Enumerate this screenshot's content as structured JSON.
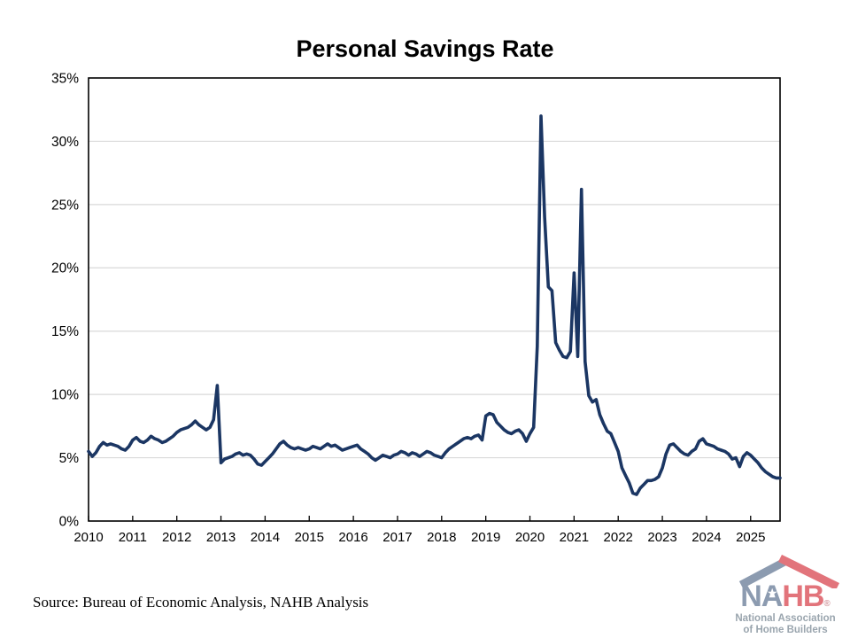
{
  "title": "Personal Savings Rate",
  "source_note": "Source: Bureau of Economic Analysis, NAHB Analysis",
  "logo": {
    "acronym_na": "NA",
    "acronym_hb": "HB",
    "registered_mark": "®",
    "star": "★",
    "subtitle_line1": "National Association",
    "subtitle_line2": "of Home Builders",
    "colors": {
      "blue_gray": "#8c9bb0",
      "red": "#e2747b",
      "gray_text": "#9aa5ae"
    }
  },
  "chart_data": {
    "type": "line",
    "title": "Personal Savings Rate",
    "frequency": "monthly",
    "x_start": "2010-01",
    "x_end": "2025-09",
    "xlabel": "",
    "ylabel": "",
    "ylim": [
      0,
      35
    ],
    "grid": "horizontal",
    "legend": "none",
    "colors": {
      "line": "#1b3663",
      "gridline": "#d9d9d9",
      "border": "#000000"
    },
    "x_tick_labels": [
      "2010",
      "2011",
      "2012",
      "2013",
      "2014",
      "2015",
      "2016",
      "2017",
      "2018",
      "2019",
      "2020",
      "2021",
      "2022",
      "2023",
      "2024",
      "2025"
    ],
    "y_ticks": [
      0,
      5,
      10,
      15,
      20,
      25,
      30,
      35
    ],
    "y_tick_labels": [
      "0%",
      "5%",
      "10%",
      "15%",
      "20%",
      "25%",
      "30%",
      "35%"
    ],
    "series": [
      {
        "name": "Personal Savings Rate (%)",
        "values": [
          5.5,
          5.1,
          5.4,
          5.9,
          6.2,
          6.0,
          6.1,
          6.0,
          5.9,
          5.7,
          5.6,
          5.9,
          6.4,
          6.6,
          6.3,
          6.2,
          6.4,
          6.7,
          6.5,
          6.4,
          6.2,
          6.3,
          6.5,
          6.7,
          7.0,
          7.2,
          7.3,
          7.4,
          7.6,
          7.9,
          7.6,
          7.4,
          7.2,
          7.4,
          8.0,
          10.7,
          4.6,
          4.9,
          5.0,
          5.1,
          5.3,
          5.4,
          5.2,
          5.3,
          5.2,
          4.9,
          4.5,
          4.4,
          4.7,
          5.0,
          5.3,
          5.7,
          6.1,
          6.3,
          6.0,
          5.8,
          5.7,
          5.8,
          5.7,
          5.6,
          5.7,
          5.9,
          5.8,
          5.7,
          5.9,
          6.1,
          5.9,
          6.0,
          5.8,
          5.6,
          5.7,
          5.8,
          5.9,
          6.0,
          5.7,
          5.5,
          5.3,
          5.0,
          4.8,
          5.0,
          5.2,
          5.1,
          5.0,
          5.2,
          5.3,
          5.5,
          5.4,
          5.2,
          5.4,
          5.3,
          5.1,
          5.3,
          5.5,
          5.4,
          5.2,
          5.1,
          5.0,
          5.4,
          5.7,
          5.9,
          6.1,
          6.3,
          6.5,
          6.6,
          6.5,
          6.7,
          6.8,
          6.4,
          8.3,
          8.5,
          8.4,
          7.8,
          7.5,
          7.2,
          7.0,
          6.9,
          7.1,
          7.2,
          6.9,
          6.3,
          6.9,
          7.4,
          13.8,
          32.0,
          24.0,
          18.5,
          18.2,
          14.1,
          13.5,
          13.0,
          12.9,
          13.4,
          19.6,
          13.0,
          26.2,
          12.6,
          9.9,
          9.4,
          9.6,
          8.4,
          7.7,
          7.1,
          6.9,
          6.2,
          5.5,
          4.2,
          3.6,
          3.0,
          2.2,
          2.1,
          2.6,
          2.9,
          3.2,
          3.2,
          3.3,
          3.5,
          4.2,
          5.3,
          6.0,
          6.1,
          5.8,
          5.5,
          5.3,
          5.2,
          5.5,
          5.7,
          6.3,
          6.5,
          6.1,
          6.0,
          5.9,
          5.7,
          5.6,
          5.5,
          5.3,
          4.9,
          5.0,
          4.3,
          5.1,
          5.4,
          5.2,
          4.9,
          4.6,
          4.2,
          3.9,
          3.7,
          3.5,
          3.4,
          3.4
        ]
      }
    ]
  }
}
